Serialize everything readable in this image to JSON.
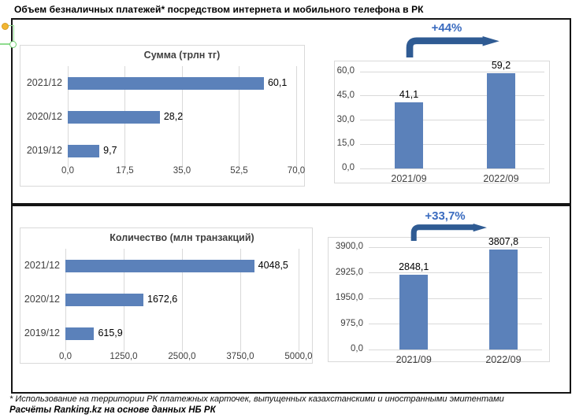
{
  "page": {
    "title": "Объем безналичных платежей* посредством интернета и мобильного телефона в РК",
    "footnote": "* Использование на территории РК платежных карточек, выпущенных казахстанскими и иностранными эмитентами",
    "source": "Расчёты Ranking.kz на основе данных НБ РК"
  },
  "colors": {
    "bar": "#5b81ba",
    "arrow": "#2f5b93",
    "annotation_text": "#3a6bbf",
    "gridline": "#d9d9d9",
    "panel_border": "#d9d9d9",
    "axis_text": "#404040",
    "data_label_text": "#000000",
    "frame_border": "#141414",
    "selection_green": "#8fdc8f",
    "anchor_yellow": "#f2b632"
  },
  "chart_data": [
    {
      "id": "sum-by-year",
      "type": "bar",
      "orientation": "horizontal",
      "title": "Сумма (трлн тг)",
      "categories": [
        "2021/12",
        "2020/12",
        "2019/12"
      ],
      "values": [
        60.1,
        28.2,
        9.7
      ],
      "value_labels": [
        "60,1",
        "28,2",
        "9,7"
      ],
      "xlim": [
        0,
        70
      ],
      "xticks": [
        "0,0",
        "17,5",
        "35,0",
        "52,5",
        "70,0"
      ],
      "grid": true,
      "legend": "none"
    },
    {
      "id": "sum-sept-compare",
      "type": "bar",
      "orientation": "vertical",
      "title": "",
      "annotation": "+44%",
      "categories": [
        "2021/09",
        "2022/09"
      ],
      "values": [
        41.1,
        59.2
      ],
      "value_labels": [
        "41,1",
        "59,2"
      ],
      "ylim": [
        0,
        60
      ],
      "yticks": [
        "60,0",
        "45,0",
        "30,0",
        "15,0",
        "0,0"
      ],
      "grid": true,
      "legend": "none"
    },
    {
      "id": "count-by-year",
      "type": "bar",
      "orientation": "horizontal",
      "title": "Количество (млн транзакций)",
      "categories": [
        "2021/12",
        "2020/12",
        "2019/12"
      ],
      "values": [
        4048.5,
        1672.6,
        615.9
      ],
      "value_labels": [
        "4048,5",
        "1672,6",
        "615,9"
      ],
      "xlim": [
        0,
        5000
      ],
      "xticks": [
        "0,0",
        "1250,0",
        "2500,0",
        "3750,0",
        "5000,0"
      ],
      "grid": true,
      "legend": "none"
    },
    {
      "id": "count-sept-compare",
      "type": "bar",
      "orientation": "vertical",
      "title": "",
      "annotation": "+33,7%",
      "categories": [
        "2021/09",
        "2022/09"
      ],
      "values": [
        2848.1,
        3807.8
      ],
      "value_labels": [
        "2848,1",
        "3807,8"
      ],
      "ylim": [
        0,
        3900
      ],
      "yticks": [
        "3900,0",
        "2925,0",
        "1950,0",
        "975,0",
        "0,0"
      ],
      "grid": true,
      "legend": "none"
    }
  ]
}
